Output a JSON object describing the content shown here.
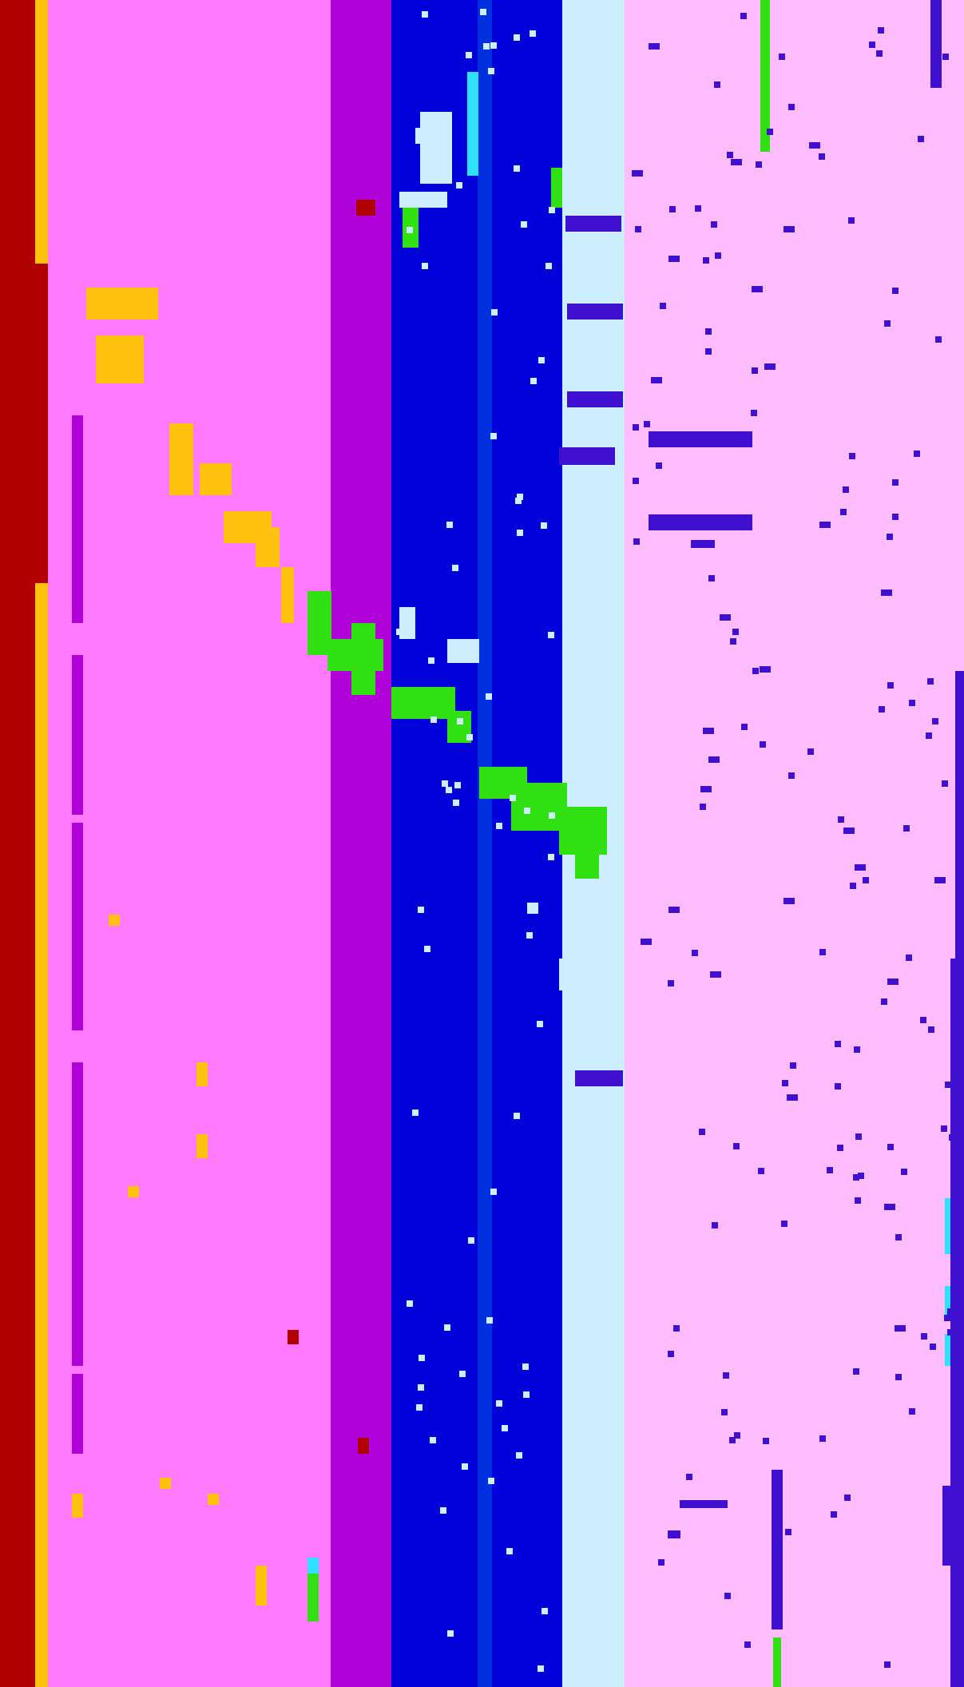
{
  "palette": {
    "red": "#b00000",
    "amber": "#ffc20e",
    "magenta": "#ff7aff",
    "purple": "#b000d8",
    "blue": "#0000d8",
    "mid_blue": "#0030e0",
    "pale_cyan": "#cceeff",
    "pale_pink": "#ffbcff",
    "green": "#30e010",
    "cyan": "#30e0ff",
    "indigo": "#4010d0"
  },
  "bands": [
    {
      "name": "red-band",
      "color": "red"
    },
    {
      "name": "amber-band",
      "color": "amber"
    },
    {
      "name": "magenta-band",
      "color": "magenta"
    },
    {
      "name": "purple-band",
      "color": "purple"
    },
    {
      "name": "blue-band",
      "color": "blue"
    },
    {
      "name": "mid-blue-band",
      "color": "mid_blue"
    },
    {
      "name": "blue-band-right",
      "color": "blue"
    },
    {
      "name": "pale-cyan-band",
      "color": "pale_cyan"
    },
    {
      "name": "pale-pink-band",
      "color": "pale_pink"
    }
  ],
  "content_note": ""
}
